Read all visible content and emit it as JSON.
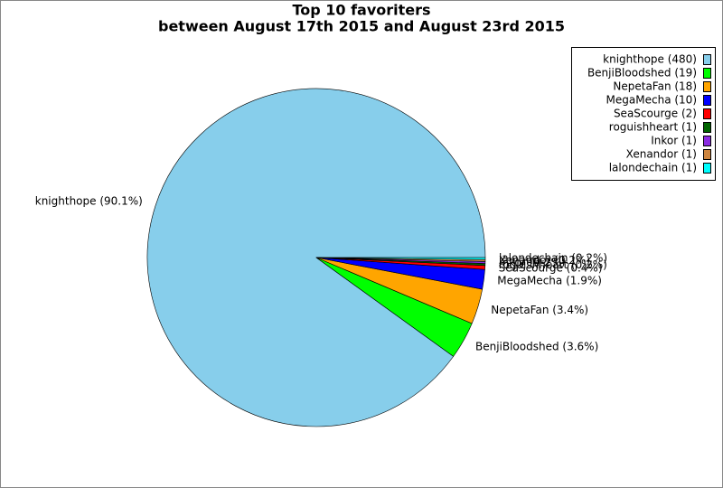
{
  "chart_data": {
    "type": "pie",
    "title": "Top 10 favoriters",
    "subtitle": "between August 17th 2015 and August 23rd 2015",
    "categories": [
      "knighthope (480)",
      "BenjiBloodshed (19)",
      "NepetaFan (18)",
      "MegaMecha (10)",
      "SeaScourge (2)",
      "roguishheart (1)",
      "Inkor (1)",
      "Xenandor (1)",
      "lalondechain (1)"
    ],
    "values": [
      480,
      19,
      18,
      10,
      2,
      1,
      1,
      1,
      1
    ],
    "value_labels": [
      "knighthope (90.1%)",
      "BenjiBloodshed (3.6%)",
      "NepetaFan (3.4%)",
      "MegaMecha (1.9%)",
      "SeaScourge (0.4%)",
      "roguishheart (0.2%)",
      "Inkor (0.2%)",
      "Xenandor (0.2%)",
      "lalondechain (0.2%)"
    ],
    "colors": [
      "#87ceeb",
      "#00ff00",
      "#ffa500",
      "#0000ff",
      "#ff0000",
      "#006400",
      "#8a2be2",
      "#cd853f",
      "#00ffff"
    ],
    "legend_position": "top-right"
  }
}
